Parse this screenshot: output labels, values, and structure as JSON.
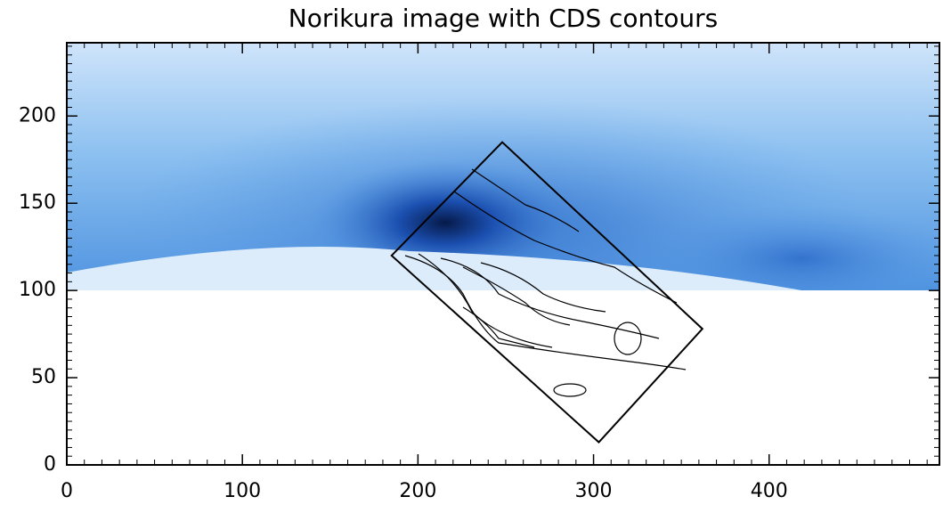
{
  "chart_data": {
    "type": "image",
    "title": "Norikura image with CDS contours",
    "xlim": [
      0,
      497
    ],
    "ylim": [
      0,
      242
    ],
    "xticks": [
      0,
      100,
      200,
      300,
      400
    ],
    "yticks": [
      0,
      50,
      100,
      150,
      200
    ],
    "overlay": {
      "x": [
        185,
        248,
        362,
        303
      ],
      "y": [
        120,
        185,
        78,
        13
      ],
      "color": "#000000"
    }
  }
}
